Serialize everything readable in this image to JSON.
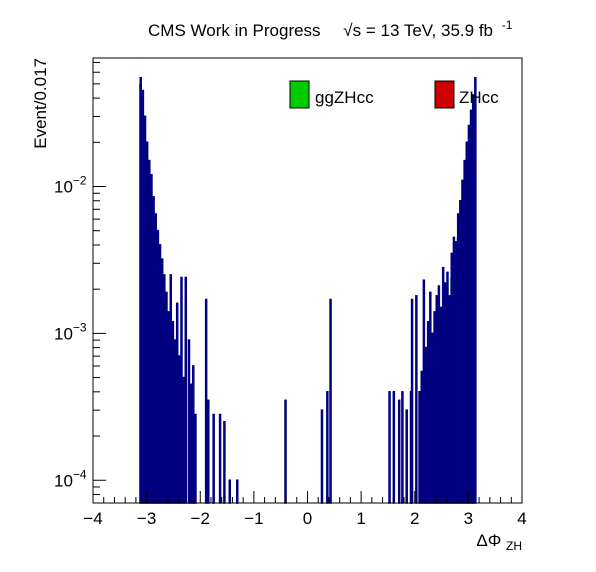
{
  "chart_data": {
    "type": "bar",
    "header": {
      "label": "CMS Work in Progress",
      "energy": "√s = 13 TeV, 35.9 fb",
      "lumi_exp": "-1"
    },
    "xlabel": {
      "main": "ΔΦ",
      "sub": "ZH"
    },
    "ylabel": "Event/0.017",
    "xlim": [
      -4,
      4
    ],
    "ylim": [
      7e-05,
      0.075
    ],
    "log_y": true,
    "x_ticks": [
      "−4",
      "−3",
      "−2",
      "−1",
      "0",
      "1",
      "2",
      "3",
      "4"
    ],
    "y_ticks": [
      {
        "value": 0.01,
        "base": "10",
        "exp": "−2"
      },
      {
        "value": 0.001,
        "base": "10",
        "exp": "−3"
      },
      {
        "value": 0.0001,
        "base": "10",
        "exp": "−4"
      }
    ],
    "legend_position": "top-right",
    "series": [
      {
        "name": "ZHcc",
        "style": "filled",
        "fill": "#cc0000",
        "outline": "#000066",
        "points": [
          [
            -3.13,
            0.05
          ],
          [
            -3.11,
            0.043
          ],
          [
            -3.09,
            0.031
          ],
          [
            -3.07,
            0.023
          ],
          [
            -3.05,
            0.017
          ],
          [
            -3.03,
            0.014
          ],
          [
            -3.01,
            0.012
          ],
          [
            -2.99,
            0.008
          ],
          [
            -2.97,
            0.0065
          ],
          [
            -2.95,
            0.0055
          ],
          [
            -2.93,
            0.0042
          ],
          [
            -2.91,
            0.0025
          ],
          [
            -2.89,
            0.0018
          ],
          [
            -2.87,
            0.0012
          ],
          [
            -2.85,
            0.00075
          ],
          [
            -2.83,
            0.00045
          ],
          [
            -2.81,
            0.00028
          ],
          [
            -2.79,
            0.00015
          ],
          [
            2.79,
            0.00016
          ],
          [
            2.81,
            0.00028
          ],
          [
            2.83,
            0.00045
          ],
          [
            2.85,
            0.0007
          ],
          [
            2.87,
            0.0011
          ],
          [
            2.89,
            0.0016
          ],
          [
            2.91,
            0.0022
          ],
          [
            2.93,
            0.003
          ],
          [
            2.95,
            0.004
          ],
          [
            2.97,
            0.0055
          ],
          [
            2.99,
            0.007
          ],
          [
            3.01,
            0.009
          ],
          [
            3.03,
            0.012
          ],
          [
            3.05,
            0.016
          ],
          [
            3.07,
            0.021
          ],
          [
            3.09,
            0.028
          ],
          [
            3.11,
            0.034
          ],
          [
            3.13,
            0.04
          ]
        ]
      },
      {
        "name": "ggZHcc",
        "style": "filled",
        "fill": "#00cc00",
        "outline": "#000066",
        "points": [
          [
            -3.09,
            0.025
          ],
          [
            -3.05,
            0.018
          ],
          [
            -3.01,
            0.012
          ],
          [
            -2.95,
            0.009
          ],
          [
            -2.91,
            0.006
          ],
          [
            -2.85,
            0.0045
          ],
          [
            -2.79,
            0.0035
          ],
          [
            -2.73,
            0.0026
          ],
          [
            -2.67,
            0.0018
          ],
          [
            -2.61,
            0.0012
          ],
          [
            -2.55,
            0.0008
          ],
          [
            -2.49,
            0.00055
          ],
          [
            -2.43,
            0.00035
          ],
          [
            -2.37,
            0.00018
          ],
          [
            2.25,
            0.0003
          ],
          [
            2.31,
            0.00045
          ],
          [
            2.37,
            0.0006
          ],
          [
            2.43,
            0.0008
          ],
          [
            2.49,
            0.001
          ],
          [
            2.55,
            0.0013
          ],
          [
            2.61,
            0.0017
          ],
          [
            2.67,
            0.0024
          ],
          [
            2.73,
            0.003
          ],
          [
            2.79,
            0.0045
          ],
          [
            2.85,
            0.0065
          ],
          [
            2.91,
            0.009
          ],
          [
            2.97,
            0.012
          ],
          [
            3.03,
            0.018
          ],
          [
            3.09,
            0.025
          ]
        ]
      },
      {
        "name": "",
        "style": "outline",
        "color": "#000080",
        "points": [
          [
            -3.11,
            0.055
          ],
          [
            -3.07,
            0.045
          ],
          [
            -3.03,
            0.03
          ],
          [
            -2.99,
            0.02
          ],
          [
            -2.95,
            0.015
          ],
          [
            -2.91,
            0.012
          ],
          [
            -2.87,
            0.0085
          ],
          [
            -2.83,
            0.0065
          ],
          [
            -2.79,
            0.005
          ],
          [
            -2.75,
            0.004
          ],
          [
            -2.71,
            0.0032
          ],
          [
            -2.67,
            0.0025
          ],
          [
            -2.63,
            0.0019
          ],
          [
            -2.59,
            0.0014
          ],
          [
            -2.55,
            0.0025
          ],
          [
            -2.51,
            0.0012
          ],
          [
            -2.47,
            0.0009
          ],
          [
            -2.43,
            0.0016
          ],
          [
            -2.39,
            0.0007
          ],
          [
            -2.35,
            0.0024
          ],
          [
            -2.31,
            0.0005
          ],
          [
            -2.27,
            0.0024
          ],
          [
            -2.21,
            0.0009
          ],
          [
            -2.17,
            0.00045
          ],
          [
            -2.13,
            0.0006
          ],
          [
            -2.09,
            0.00028
          ],
          [
            -1.89,
            0.0017
          ],
          [
            -1.85,
            0.00035
          ],
          [
            -1.75,
            0.00028
          ],
          [
            -1.63,
            0.00028
          ],
          [
            -1.55,
            0.00025
          ],
          [
            -1.45,
            0.0001
          ],
          [
            -1.31,
            0.0001
          ],
          [
            -0.41,
            0.00035
          ],
          [
            0.27,
            0.0003
          ],
          [
            0.37,
            0.0004
          ],
          [
            0.43,
            0.0017
          ],
          [
            1.53,
            0.0004
          ],
          [
            1.61,
            0.0004
          ],
          [
            1.71,
            0.00035
          ],
          [
            1.77,
            0.0004
          ],
          [
            1.85,
            0.0003
          ],
          [
            1.93,
            0.0004
          ],
          [
            1.95,
            0.0017
          ],
          [
            2.03,
            0.0018
          ],
          [
            2.09,
            0.0004
          ],
          [
            2.13,
            0.00055
          ],
          [
            2.17,
            0.0023
          ],
          [
            2.21,
            0.0008
          ],
          [
            2.25,
            0.0012
          ],
          [
            2.29,
            0.0019
          ],
          [
            2.33,
            0.001
          ],
          [
            2.37,
            0.0014
          ],
          [
            2.41,
            0.0018
          ],
          [
            2.45,
            0.0021
          ],
          [
            2.49,
            0.0015
          ],
          [
            2.53,
            0.0028
          ],
          [
            2.57,
            0.0022
          ],
          [
            2.61,
            0.0026
          ],
          [
            2.65,
            0.0018
          ],
          [
            2.69,
            0.0035
          ],
          [
            2.73,
            0.0045
          ],
          [
            2.77,
            0.0042
          ],
          [
            2.81,
            0.0065
          ],
          [
            2.85,
            0.008
          ],
          [
            2.89,
            0.011
          ],
          [
            2.93,
            0.015
          ],
          [
            2.97,
            0.02
          ],
          [
            3.01,
            0.026
          ],
          [
            3.05,
            0.033
          ],
          [
            3.09,
            0.042
          ],
          [
            3.13,
            0.055
          ]
        ]
      }
    ]
  }
}
